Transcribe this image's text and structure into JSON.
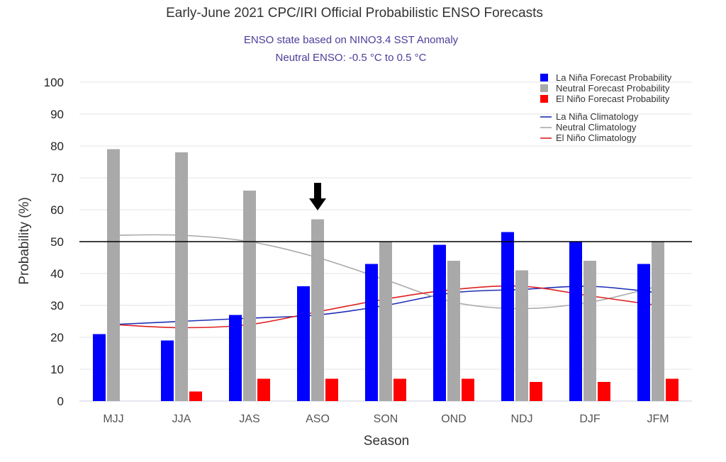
{
  "chart_data": {
    "type": "bar",
    "title": "Early-June 2021 CPC/IRI Official Probabilistic ENSO Forecasts",
    "subtitle": [
      "ENSO state based on NINO3.4 SST Anomaly",
      "Neutral ENSO: -0.5 °C to 0.5 °C"
    ],
    "xlabel": "Season",
    "ylabel": "Probability (%)",
    "ylim": [
      0,
      100
    ],
    "yticks": [
      0,
      10,
      20,
      30,
      40,
      50,
      60,
      70,
      80,
      90,
      100
    ],
    "categories": [
      "MJJ",
      "JJA",
      "JAS",
      "ASO",
      "SON",
      "OND",
      "NDJ",
      "DJF",
      "JFM"
    ],
    "series": [
      {
        "name": "La Niña Forecast Probability",
        "kind": "bar",
        "color": "#0000ff",
        "values": [
          21,
          19,
          27,
          36,
          43,
          49,
          53,
          50,
          43
        ]
      },
      {
        "name": "Neutral Forecast Probability",
        "kind": "bar",
        "color": "#a9a9a9",
        "values": [
          79,
          78,
          66,
          57,
          50,
          44,
          41,
          44,
          50
        ]
      },
      {
        "name": "El Niño Forecast Probability",
        "kind": "bar",
        "color": "#ff0000",
        "values": [
          0,
          3,
          7,
          7,
          7,
          7,
          6,
          6,
          7
        ]
      },
      {
        "name": "La Niña Climatology",
        "kind": "line",
        "color": "#1f2fb5",
        "values": [
          24,
          25,
          26,
          27,
          30,
          34,
          35,
          36,
          34
        ]
      },
      {
        "name": "Neutral Climatology",
        "kind": "line",
        "color": "#a9a9a9",
        "values": [
          52,
          52,
          50,
          45,
          38,
          31,
          29,
          31,
          36
        ]
      },
      {
        "name": "El Niño Climatology",
        "kind": "line",
        "color": "#e02020",
        "values": [
          24,
          23,
          24,
          28,
          32,
          35,
          36,
          33,
          30
        ]
      }
    ],
    "reference_line": {
      "value": 50,
      "color": "#000000"
    },
    "marker_arrow": {
      "category": "ASO",
      "direction": "down"
    },
    "grid": true,
    "legend_position": "top-right"
  }
}
